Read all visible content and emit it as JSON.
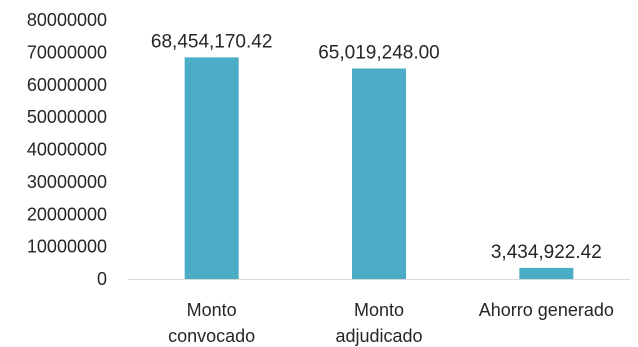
{
  "chart_data": {
    "type": "bar",
    "title": "",
    "xlabel": "",
    "ylabel": "",
    "categories": [
      [
        "Monto",
        "convocado"
      ],
      [
        "Monto",
        "adjudicado"
      ],
      [
        "Ahorro generado"
      ]
    ],
    "values": [
      68454170.42,
      65019248.0,
      3434922.42
    ],
    "data_labels": [
      "68,454,170.42",
      "65,019,248.00",
      "3,434,922.42"
    ],
    "ylim": [
      0,
      80000000
    ],
    "yticks": [
      0,
      10000000,
      20000000,
      30000000,
      40000000,
      50000000,
      60000000,
      70000000,
      80000000
    ],
    "ytick_labels": [
      "0",
      "10000000",
      "20000000",
      "30000000",
      "40000000",
      "50000000",
      "60000000",
      "70000000",
      "80000000"
    ],
    "grid": false,
    "legend": "none",
    "bar_color": "#4bacc6",
    "axis_color": "#d9d9d9",
    "text_color": "#262626"
  }
}
